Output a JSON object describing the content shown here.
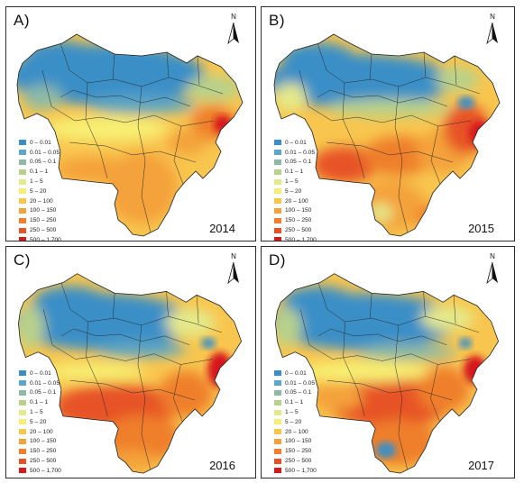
{
  "legend": {
    "classes": [
      {
        "label": "0 – 0.01",
        "color": "#3a8fc7"
      },
      {
        "label": "0.01 – 0.05",
        "color": "#5ea6c4"
      },
      {
        "label": "0.05 – 0.1",
        "color": "#8db9a6"
      },
      {
        "label": "0.1 – 1",
        "color": "#b8d18b"
      },
      {
        "label": "1 – 5",
        "color": "#e4e98a"
      },
      {
        "label": "5 – 20",
        "color": "#f7ef73"
      },
      {
        "label": "20 – 100",
        "color": "#f8c64e"
      },
      {
        "label": "100 – 150",
        "color": "#f4a23a"
      },
      {
        "label": "150 – 250",
        "color": "#ef7f2c"
      },
      {
        "label": "250 – 500",
        "color": "#e75225"
      },
      {
        "label": "500 – 1,700",
        "color": "#d7191c"
      }
    ]
  },
  "north_arrow": {
    "letter": "N",
    "icon": "north-arrow-icon"
  },
  "panels": [
    {
      "label": "A)",
      "year": "2014"
    },
    {
      "label": "B)",
      "year": "2015"
    },
    {
      "label": "C)",
      "year": "2016"
    },
    {
      "label": "D)",
      "year": "2017"
    }
  ]
}
